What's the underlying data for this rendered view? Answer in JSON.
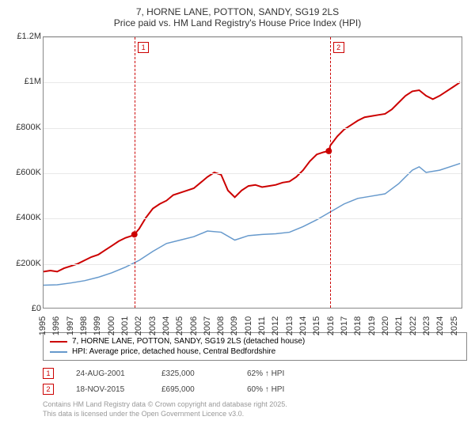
{
  "title": "7, HORNE LANE, POTTON, SANDY, SG19 2LS",
  "subtitle": "Price paid vs. HM Land Registry's House Price Index (HPI)",
  "chart": {
    "type": "line",
    "background_color": "#ffffff",
    "grid_color": "#e8e8e8",
    "border_color": "#888888",
    "xlim": [
      1995,
      2025.6
    ],
    "ylim": [
      0,
      1200000
    ],
    "yticks": [
      0,
      200000,
      400000,
      600000,
      800000,
      1000000,
      1200000
    ],
    "ytick_labels": [
      "£0",
      "£200K",
      "£400K",
      "£600K",
      "£800K",
      "£1M",
      "£1.2M"
    ],
    "xticks": [
      1995,
      1996,
      1997,
      1998,
      1999,
      2000,
      2001,
      2002,
      2003,
      2004,
      2005,
      2006,
      2007,
      2008,
      2009,
      2010,
      2011,
      2012,
      2013,
      2014,
      2015,
      2016,
      2017,
      2018,
      2019,
      2020,
      2021,
      2022,
      2023,
      2024,
      2025
    ],
    "label_fontsize": 11,
    "series": [
      {
        "name": "7, HORNE LANE, POTTON, SANDY, SG19 2LS (detached house)",
        "color": "#cc0000",
        "line_width": 2,
        "data": [
          [
            1995,
            160000
          ],
          [
            1995.5,
            165000
          ],
          [
            1996,
            160000
          ],
          [
            1996.5,
            175000
          ],
          [
            1997,
            185000
          ],
          [
            1997.5,
            195000
          ],
          [
            1998,
            210000
          ],
          [
            1998.5,
            225000
          ],
          [
            1999,
            235000
          ],
          [
            1999.5,
            255000
          ],
          [
            2000,
            275000
          ],
          [
            2000.5,
            295000
          ],
          [
            2001,
            310000
          ],
          [
            2001.5,
            320000
          ],
          [
            2001.65,
            325000
          ],
          [
            2002,
            350000
          ],
          [
            2002.5,
            400000
          ],
          [
            2003,
            440000
          ],
          [
            2003.5,
            460000
          ],
          [
            2004,
            475000
          ],
          [
            2004.5,
            500000
          ],
          [
            2005,
            510000
          ],
          [
            2005.5,
            520000
          ],
          [
            2006,
            530000
          ],
          [
            2006.5,
            555000
          ],
          [
            2007,
            580000
          ],
          [
            2007.5,
            600000
          ],
          [
            2008,
            590000
          ],
          [
            2008.5,
            520000
          ],
          [
            2009,
            490000
          ],
          [
            2009.5,
            520000
          ],
          [
            2010,
            540000
          ],
          [
            2010.5,
            545000
          ],
          [
            2011,
            535000
          ],
          [
            2011.5,
            540000
          ],
          [
            2012,
            545000
          ],
          [
            2012.5,
            555000
          ],
          [
            2013,
            560000
          ],
          [
            2013.5,
            580000
          ],
          [
            2014,
            610000
          ],
          [
            2014.5,
            650000
          ],
          [
            2015,
            680000
          ],
          [
            2015.5,
            690000
          ],
          [
            2015.88,
            695000
          ],
          [
            2016,
            720000
          ],
          [
            2016.5,
            760000
          ],
          [
            2017,
            790000
          ],
          [
            2017.5,
            810000
          ],
          [
            2018,
            830000
          ],
          [
            2018.5,
            845000
          ],
          [
            2019,
            850000
          ],
          [
            2019.5,
            855000
          ],
          [
            2020,
            860000
          ],
          [
            2020.5,
            880000
          ],
          [
            2021,
            910000
          ],
          [
            2021.5,
            940000
          ],
          [
            2022,
            960000
          ],
          [
            2022.5,
            965000
          ],
          [
            2023,
            940000
          ],
          [
            2023.5,
            925000
          ],
          [
            2024,
            940000
          ],
          [
            2024.5,
            960000
          ],
          [
            2025,
            980000
          ],
          [
            2025.5,
            1000000
          ]
        ]
      },
      {
        "name": "HPI: Average price, detached house, Central Bedfordshire",
        "color": "#6699cc",
        "line_width": 1.5,
        "data": [
          [
            1995,
            100000
          ],
          [
            1996,
            102000
          ],
          [
            1997,
            110000
          ],
          [
            1998,
            120000
          ],
          [
            1999,
            135000
          ],
          [
            2000,
            155000
          ],
          [
            2001,
            180000
          ],
          [
            2002,
            210000
          ],
          [
            2003,
            250000
          ],
          [
            2004,
            285000
          ],
          [
            2005,
            300000
          ],
          [
            2006,
            315000
          ],
          [
            2007,
            340000
          ],
          [
            2008,
            335000
          ],
          [
            2009,
            300000
          ],
          [
            2010,
            320000
          ],
          [
            2011,
            325000
          ],
          [
            2012,
            328000
          ],
          [
            2013,
            335000
          ],
          [
            2014,
            360000
          ],
          [
            2015,
            390000
          ],
          [
            2016,
            425000
          ],
          [
            2017,
            460000
          ],
          [
            2018,
            485000
          ],
          [
            2019,
            495000
          ],
          [
            2020,
            505000
          ],
          [
            2021,
            550000
          ],
          [
            2022,
            610000
          ],
          [
            2022.5,
            625000
          ],
          [
            2023,
            600000
          ],
          [
            2024,
            610000
          ],
          [
            2025,
            630000
          ],
          [
            2025.5,
            640000
          ]
        ]
      }
    ],
    "markers": [
      {
        "id": "1",
        "x": 2001.65,
        "y": 325000,
        "color": "#cc0000"
      },
      {
        "id": "2",
        "x": 2015.88,
        "y": 695000,
        "color": "#cc0000"
      }
    ]
  },
  "legend": {
    "items": [
      {
        "label": "7, HORNE LANE, POTTON, SANDY, SG19 2LS (detached house)",
        "color": "#cc0000"
      },
      {
        "label": "HPI: Average price, detached house, Central Bedfordshire",
        "color": "#6699cc"
      }
    ]
  },
  "transactions": [
    {
      "id": "1",
      "date": "24-AUG-2001",
      "price": "£325,000",
      "delta": "62% ↑ HPI"
    },
    {
      "id": "2",
      "date": "18-NOV-2015",
      "price": "£695,000",
      "delta": "60% ↑ HPI"
    }
  ],
  "footer": {
    "line1": "Contains HM Land Registry data © Crown copyright and database right 2025.",
    "line2": "This data is licensed under the Open Government Licence v3.0."
  }
}
